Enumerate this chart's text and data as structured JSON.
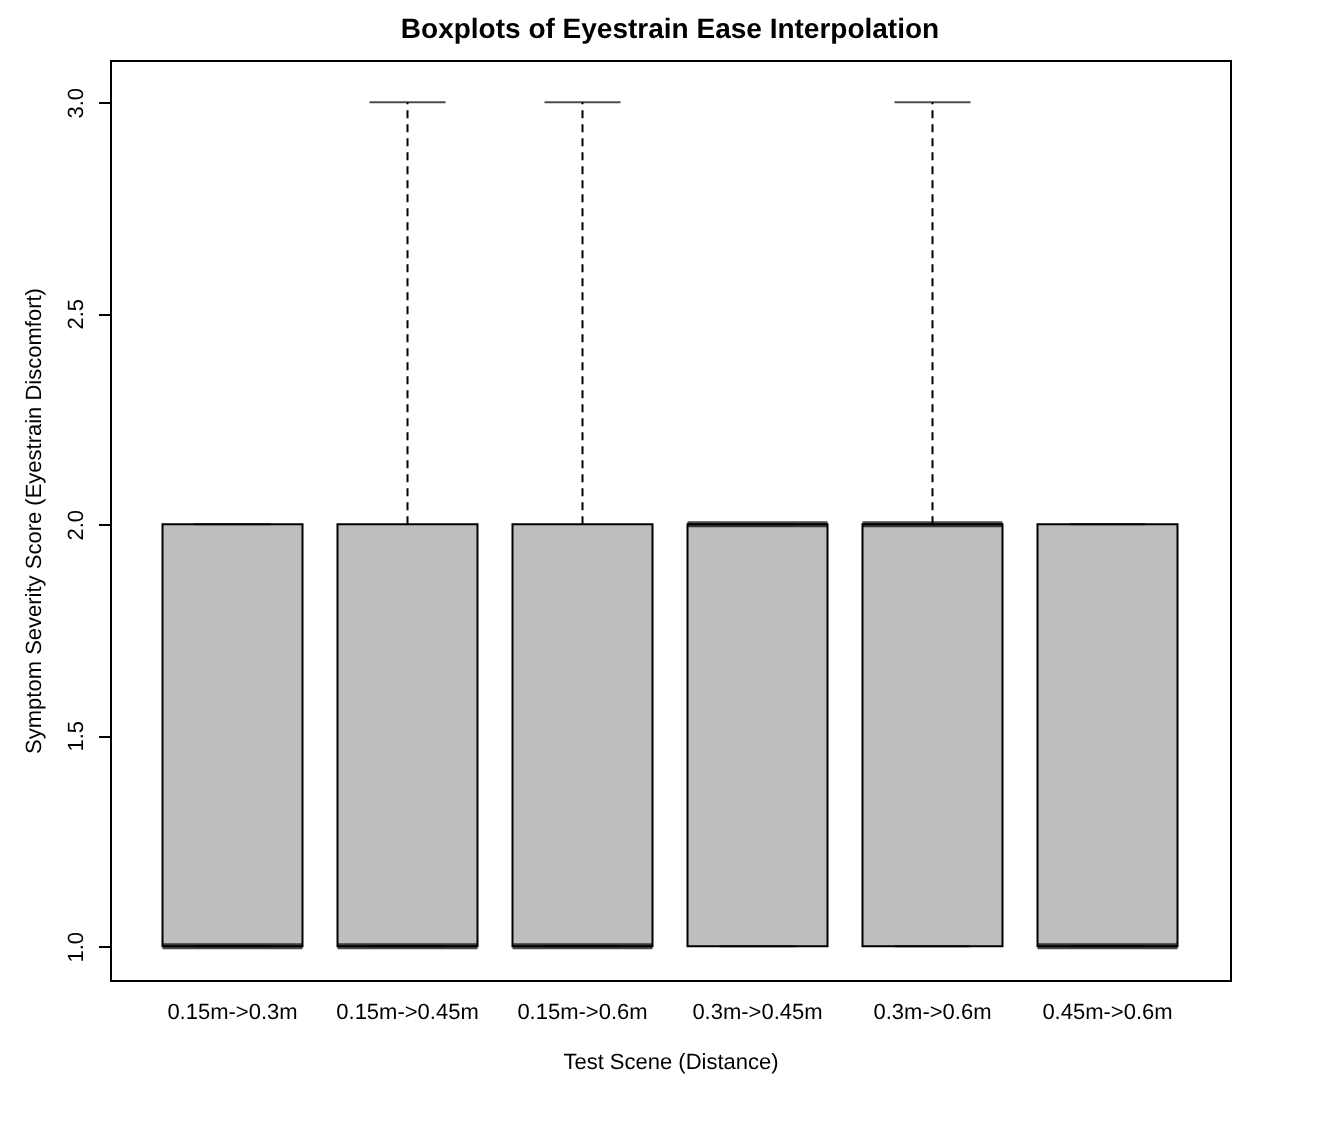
{
  "chart_data": {
    "type": "box",
    "title": "Boxplots of Eyestrain Ease Interpolation",
    "xlabel": "Test Scene (Distance)",
    "ylabel": "Symptom Severity Score (Eyestrain Discomfort)",
    "categories": [
      "0.15m->0.3m",
      "0.15m->0.45m",
      "0.15m->0.6m",
      "0.3m->0.45m",
      "0.3m->0.6m",
      "0.45m->0.6m"
    ],
    "boxes": [
      {
        "low": 1,
        "q1": 1,
        "median": 1,
        "q3": 2,
        "high": 2
      },
      {
        "low": 1,
        "q1": 1,
        "median": 1,
        "q3": 2,
        "high": 3
      },
      {
        "low": 1,
        "q1": 1,
        "median": 1,
        "q3": 2,
        "high": 3
      },
      {
        "low": 1,
        "q1": 1,
        "median": 2,
        "q3": 2,
        "high": 2
      },
      {
        "low": 1,
        "q1": 1,
        "median": 2,
        "q3": 2,
        "high": 3
      },
      {
        "low": 1,
        "q1": 1,
        "median": 1,
        "q3": 2,
        "high": 2
      }
    ],
    "color": "#bebebe",
    "ylim": [
      0.92,
      3.1
    ],
    "yticks": [
      {
        "value": 1,
        "label": "1.0"
      },
      {
        "value": 1.5,
        "label": "1.5"
      },
      {
        "value": 2,
        "label": "2.0"
      },
      {
        "value": 2.5,
        "label": "2.5"
      },
      {
        "value": 3,
        "label": "3.0"
      }
    ],
    "grid": false
  }
}
